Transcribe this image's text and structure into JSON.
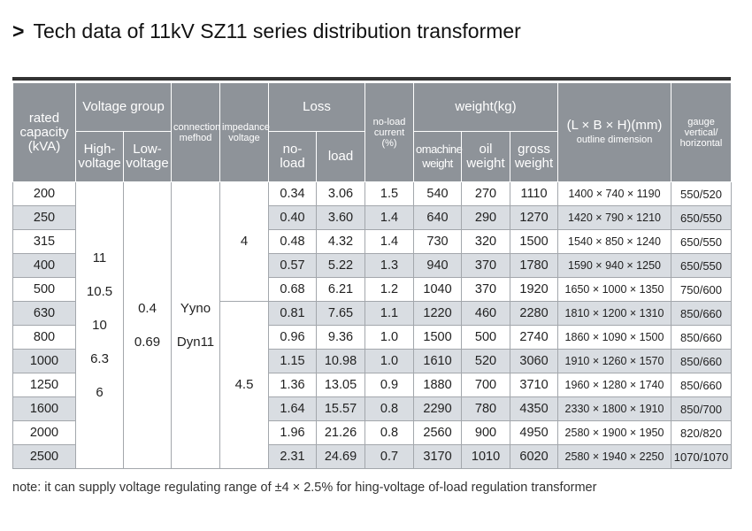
{
  "title": "Tech data of 11kV SZ11 series distribution transformer",
  "table": {
    "headers": {
      "rated_capacity": "rated capacity (kVA)",
      "voltage_group": "Voltage group",
      "high_voltage": "High-voltage",
      "low_voltage": "Low-voltage",
      "connection": "connection mefhod",
      "impedance": "impedance voltage",
      "loss": "Loss",
      "no_load": "no-load",
      "load": "load",
      "no_load_current": "no-load current (%)",
      "weight": "weight(kg)",
      "machine_weight": "omachine weight",
      "oil_weight": "oil weight",
      "gross_weight": "gross weight",
      "dimension": "(L × B × H)(mm)",
      "dimension_sub": "outline dimension",
      "gauge": "gauge vertical/ horizontal"
    },
    "high_voltage_values": [
      "11",
      "10.5",
      "10",
      "6.3",
      "6"
    ],
    "low_voltage_values": [
      "0.4",
      "0.69"
    ],
    "connection_values": [
      "Yyno",
      "Dyn11"
    ],
    "impedance_values": [
      "4",
      "4.5"
    ],
    "rows": [
      [
        "200",
        "0.34",
        "3.06",
        "1.5",
        "540",
        "270",
        "1110",
        "1400 × 740 × 1190",
        "550/520"
      ],
      [
        "250",
        "0.40",
        "3.60",
        "1.4",
        "640",
        "290",
        "1270",
        "1420 × 790 × 1210",
        "650/550"
      ],
      [
        "315",
        "0.48",
        "4.32",
        "1.4",
        "730",
        "320",
        "1500",
        "1540 × 850 × 1240",
        "650/550"
      ],
      [
        "400",
        "0.57",
        "5.22",
        "1.3",
        "940",
        "370",
        "1780",
        "1590 × 940 × 1250",
        "650/550"
      ],
      [
        "500",
        "0.68",
        "6.21",
        "1.2",
        "1040",
        "370",
        "1920",
        "1650 × 1000 × 1350",
        "750/600"
      ],
      [
        "630",
        "0.81",
        "7.65",
        "1.1",
        "1220",
        "460",
        "2280",
        "1810 × 1200 × 1310",
        "850/660"
      ],
      [
        "800",
        "0.96",
        "9.36",
        "1.0",
        "1500",
        "500",
        "2740",
        "1860 × 1090 × 1500",
        "850/660"
      ],
      [
        "1000",
        "1.15",
        "10.98",
        "1.0",
        "1610",
        "520",
        "3060",
        "1910 × 1260 × 1570",
        "850/660"
      ],
      [
        "1250",
        "1.36",
        "13.05",
        "0.9",
        "1880",
        "700",
        "3710",
        "1960 × 1280 × 1740",
        "850/660"
      ],
      [
        "1600",
        "1.64",
        "15.57",
        "0.8",
        "2290",
        "780",
        "4350",
        "2330 × 1800 × 1910",
        "850/700"
      ],
      [
        "2000",
        "1.96",
        "21.26",
        "0.8",
        "2560",
        "900",
        "4950",
        "2580 × 1900 × 1950",
        "820/820"
      ],
      [
        "2500",
        "2.31",
        "24.69",
        "0.7",
        "3170",
        "1010",
        "6020",
        "2580 × 1940 × 2250",
        "1070/1070"
      ]
    ]
  },
  "note": "note: it can supply voltage regulating range of ±4 × 2.5% for hing-voltage of-load regulation transformer"
}
